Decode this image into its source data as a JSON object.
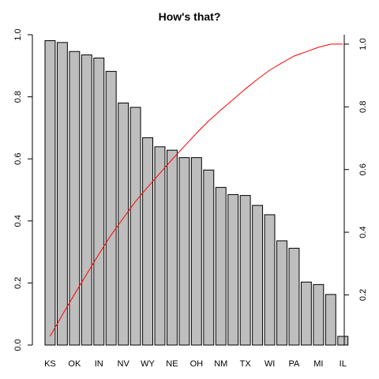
{
  "chart_data": {
    "type": "bar",
    "title": "How's that?",
    "xlabel": "",
    "ylabel": "",
    "ylim": [
      0,
      1
    ],
    "y_ticks": [
      0.0,
      0.2,
      0.4,
      0.6,
      0.8,
      1.0
    ],
    "y_tick_labels": [
      "0.0",
      "0.2",
      "0.4",
      "0.6",
      "0.8",
      "1.0"
    ],
    "grid": false,
    "bar_color": "#bebebe",
    "categories": [
      "KS",
      "",
      "OK",
      "",
      "IN",
      "",
      "NV",
      "",
      "WY",
      "",
      "NE",
      "",
      "OH",
      "",
      "NM",
      "",
      "TX",
      "",
      "WI",
      "",
      "PA",
      "",
      "MI",
      "",
      "IL"
    ],
    "values": [
      0.981,
      0.975,
      0.946,
      0.935,
      0.925,
      0.882,
      0.78,
      0.766,
      0.668,
      0.639,
      0.628,
      0.604,
      0.604,
      0.564,
      0.508,
      0.485,
      0.482,
      0.45,
      0.42,
      0.336,
      0.312,
      0.203,
      0.195,
      0.163,
      0.028
    ],
    "series": [
      {
        "type": "line",
        "color": "#ff0000",
        "axis": "right",
        "values": [
          0.068,
          0.136,
          0.202,
          0.266,
          0.33,
          0.391,
          0.445,
          0.498,
          0.544,
          0.588,
          0.632,
          0.674,
          0.716,
          0.755,
          0.79,
          0.823,
          0.857,
          0.888,
          0.917,
          0.94,
          0.962,
          0.976,
          0.99,
          1.0,
          1.0
        ]
      }
    ],
    "y2lim": [
      0.04,
      1.03
    ],
    "y2_ticks": [
      0.2,
      0.4,
      0.6,
      0.8,
      1.0
    ],
    "y2_tick_labels": [
      "0.2",
      "0.4",
      "0.6",
      "0.8",
      "1.0"
    ]
  }
}
